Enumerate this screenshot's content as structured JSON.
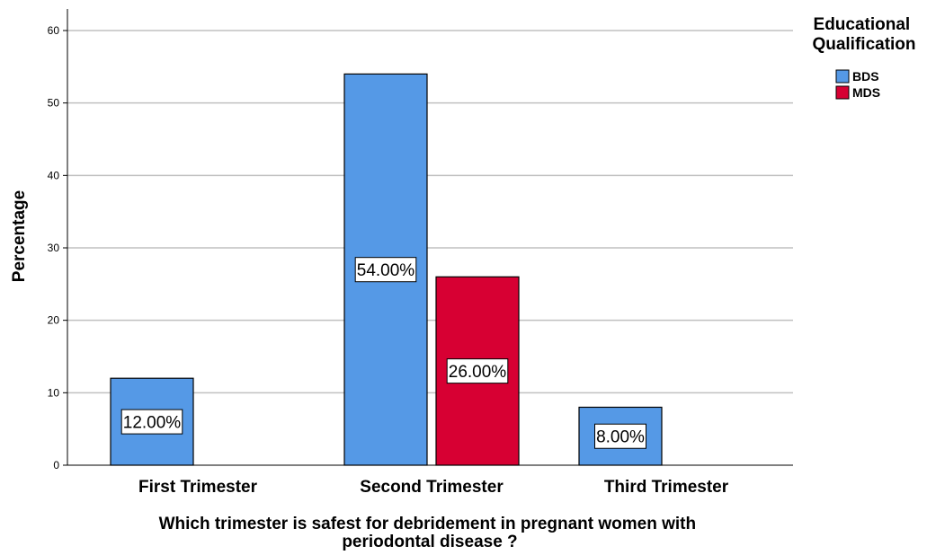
{
  "chart_data": {
    "type": "bar",
    "categories": [
      "First Trimester",
      "Second Trimester",
      "Third Trimester"
    ],
    "series": [
      {
        "name": "BDS",
        "color": "#5599e6",
        "values": [
          12,
          54,
          8
        ],
        "labels": [
          "12.00%",
          "54.00%",
          "8.00%"
        ]
      },
      {
        "name": "MDS",
        "color": "#d70033",
        "values": [
          null,
          26,
          null
        ],
        "labels": [
          null,
          "26.00%",
          null
        ]
      }
    ],
    "xlabel_lines": [
      "Which trimester is safest for debridement in pregnant women with",
      "periodontal disease ?"
    ],
    "ylabel": "Percentage",
    "ylim": [
      0,
      60
    ],
    "yticks": [
      0,
      10,
      20,
      30,
      40,
      50,
      60
    ],
    "grid": true,
    "legend": {
      "title_lines": [
        "Educational",
        "Qualification"
      ],
      "placement": "top-right"
    }
  }
}
